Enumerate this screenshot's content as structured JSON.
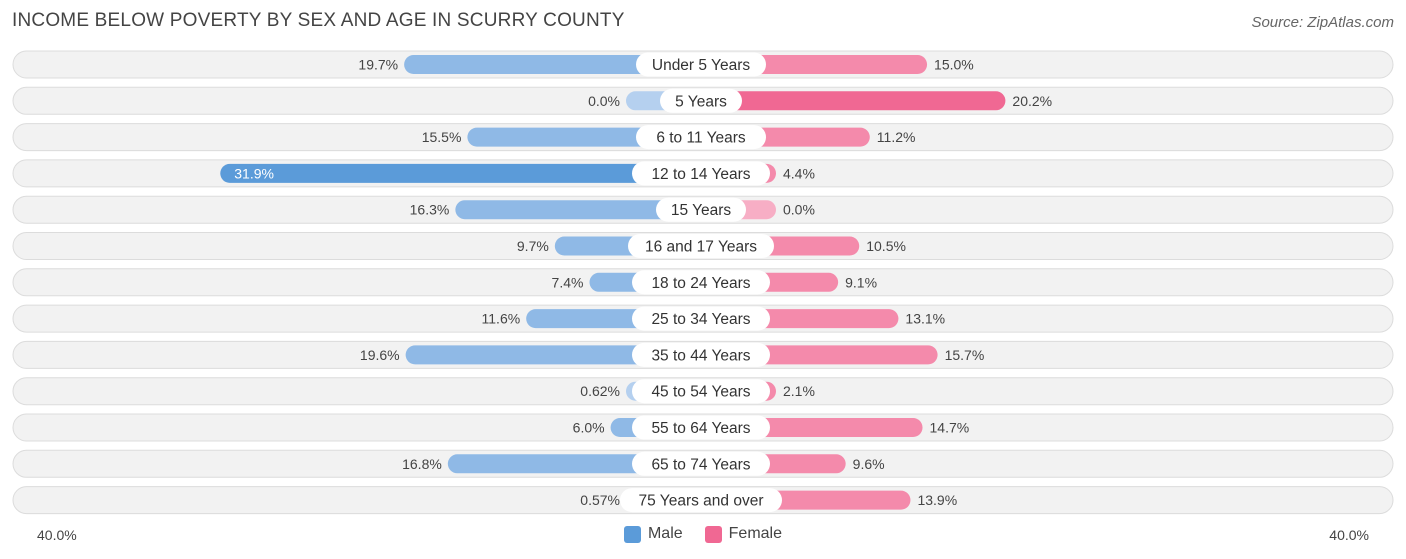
{
  "title": "INCOME BELOW POVERTY BY SEX AND AGE IN SCURRY COUNTY",
  "source": "Source: ZipAtlas.com",
  "colors": {
    "male_strong": "#5b9bd9",
    "male": "#8fb9e6",
    "male_light": "#b5d0ef",
    "female_strong": "#f06893",
    "female": "#f48aab",
    "female_light": "#f7aec5"
  },
  "chart_data": {
    "type": "bar",
    "orientation": "horizontal-diverging",
    "categories": [
      "Under 5 Years",
      "5 Years",
      "6 to 11 Years",
      "12 to 14 Years",
      "15 Years",
      "16 and 17 Years",
      "18 to 24 Years",
      "25 to 34 Years",
      "35 to 44 Years",
      "45 to 54 Years",
      "55 to 64 Years",
      "65 to 74 Years",
      "75 Years and over"
    ],
    "series": [
      {
        "name": "Male",
        "values": [
          19.7,
          0.0,
          15.5,
          31.9,
          16.3,
          9.7,
          7.4,
          11.6,
          19.6,
          0.62,
          6.0,
          16.8,
          0.57
        ],
        "labels": [
          "19.7%",
          "0.0%",
          "15.5%",
          "31.9%",
          "16.3%",
          "9.7%",
          "7.4%",
          "11.6%",
          "19.6%",
          "0.62%",
          "6.0%",
          "16.8%",
          "0.57%"
        ]
      },
      {
        "name": "Female",
        "values": [
          15.0,
          20.2,
          11.2,
          4.4,
          0.0,
          10.5,
          9.1,
          13.1,
          15.7,
          2.1,
          14.7,
          9.6,
          13.9
        ],
        "labels": [
          "15.0%",
          "20.2%",
          "11.2%",
          "4.4%",
          "0.0%",
          "10.5%",
          "9.1%",
          "13.1%",
          "15.7%",
          "2.1%",
          "14.7%",
          "9.6%",
          "13.9%"
        ]
      }
    ],
    "xlim": [
      -40,
      40
    ],
    "axis_left_label": "40.0%",
    "axis_right_label": "40.0%",
    "legend": [
      "Male",
      "Female"
    ]
  }
}
